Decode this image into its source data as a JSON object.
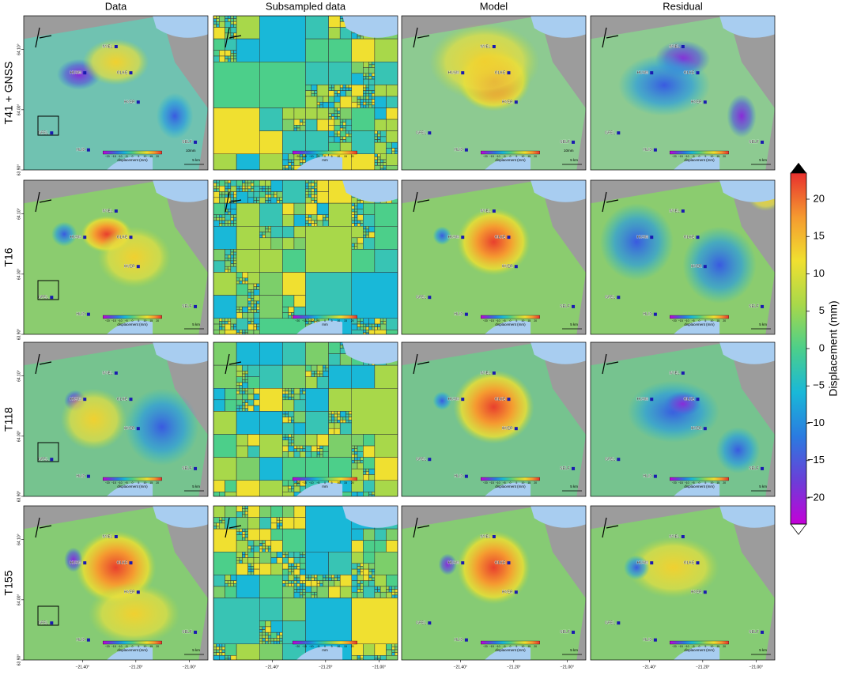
{
  "columns": [
    "Data",
    "Subsampled data",
    "Model",
    "Residual"
  ],
  "rows": [
    "T41 + GNSS",
    "T16",
    "T118",
    "T155"
  ],
  "stations": [
    "NVEL",
    "HUSM",
    "OLKE",
    "HVER",
    "GFEL",
    "HLID",
    "SELF"
  ],
  "latlim": [
    63.9,
    64.156
  ],
  "lat_ticks": [
    {
      "value": 64.1,
      "label": "64.10°"
    },
    {
      "value": 64.0,
      "label": "64.00°"
    },
    {
      "value": 63.9,
      "label": "63.90°"
    }
  ],
  "lonlim": [
    -21.62,
    -20.93
  ],
  "lon_ticks": [
    {
      "value": -21.4,
      "label": "−21.40°"
    },
    {
      "value": -21.2,
      "label": "−21.20°"
    },
    {
      "value": -21.0,
      "label": "−21.00°"
    }
  ],
  "colorbar": {
    "label": "Displacement (mm)",
    "lim": [
      -23.5,
      23.5
    ],
    "ticks": [
      {
        "value": -20,
        "label": "−20"
      },
      {
        "value": -15,
        "label": "−15"
      },
      {
        "value": -10,
        "label": "−10"
      },
      {
        "value": -5,
        "label": "−5"
      },
      0,
      5,
      10,
      15,
      20
    ],
    "colors": [
      "#c400d8",
      "#6a3fd8",
      "#2a7be0",
      "#19b8d8",
      "#4ccf8a",
      "#a8d84a",
      "#f0e030",
      "#f59a30",
      "#e8302e"
    ]
  },
  "inset_label": "displacement (mm)",
  "inset_unit": "mm",
  "scale_label": "5 km",
  "gnss_scale_label": "10mm"
}
